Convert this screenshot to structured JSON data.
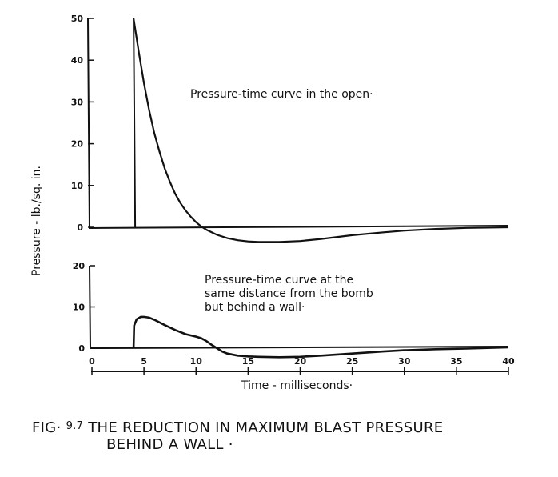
{
  "chart_data": [
    {
      "type": "line",
      "title": "",
      "annotation": "Pressure-time curve in the open·",
      "ylabel": "Pressure - lb./sq. in.",
      "xlabel": "Time - milliseconds·",
      "ylim": [
        0,
        50
      ],
      "xlim": [
        0,
        40
      ],
      "y_ticks": [
        "0",
        "10",
        "20",
        "30",
        "40",
        "50"
      ],
      "grid": false,
      "series": [
        {
          "name": "In the open",
          "x": [
            4.0,
            4.0,
            4.5,
            5.0,
            5.5,
            6.0,
            6.5,
            7.0,
            7.5,
            8.0,
            8.5,
            9.0,
            9.5,
            10.0,
            10.5,
            11.0,
            12.0,
            13.0,
            14.0,
            15.0,
            16.0,
            18.0,
            20.0,
            22.0,
            25.0,
            28.0,
            30.0,
            33.0,
            36.0,
            40.0
          ],
          "y": [
            0,
            50,
            42,
            34.5,
            28,
            22.5,
            18,
            14,
            10.8,
            8,
            5.8,
            4,
            2.5,
            1.2,
            0.2,
            -0.6,
            -1.8,
            -2.6,
            -3.1,
            -3.4,
            -3.5,
            -3.5,
            -3.3,
            -2.8,
            -1.9,
            -1.2,
            -0.8,
            -0.4,
            -0.15,
            0
          ]
        }
      ]
    },
    {
      "type": "line",
      "title": "",
      "annotation": "Pressure-time curve at the same distance from the bomb but behind a wall·",
      "ylim": [
        0,
        20
      ],
      "xlim": [
        0,
        40
      ],
      "y_ticks": [
        "0",
        "10",
        "20"
      ],
      "x_ticks": [
        "0",
        "5",
        "10",
        "15",
        "20",
        "25",
        "30",
        "35",
        "40"
      ],
      "grid": false,
      "series": [
        {
          "name": "Behind a wall",
          "x": [
            4.0,
            4.05,
            4.3,
            4.7,
            5.0,
            5.5,
            6.0,
            7.0,
            8.0,
            9.0,
            10.0,
            10.5,
            11.0,
            11.5,
            12.0,
            12.5,
            13.0,
            14.0,
            15.0,
            16.0,
            18.0,
            20.0,
            22.0,
            25.0,
            28.0,
            30.0,
            33.0,
            36.0,
            40.0
          ],
          "y": [
            0,
            5.5,
            7.0,
            7.6,
            7.6,
            7.4,
            6.9,
            5.6,
            4.4,
            3.4,
            2.8,
            2.4,
            1.7,
            0.8,
            0.0,
            -0.8,
            -1.3,
            -1.8,
            -2.0,
            -2.1,
            -2.2,
            -2.1,
            -1.8,
            -1.3,
            -0.8,
            -0.5,
            -0.25,
            -0.1,
            0.2
          ]
        }
      ]
    }
  ],
  "caption": {
    "prefix": "FIG·",
    "number": "9.7",
    "line1": "THE REDUCTION IN MAXIMUM BLAST PRESSURE",
    "line2": "BEHIND A WALL ·"
  }
}
